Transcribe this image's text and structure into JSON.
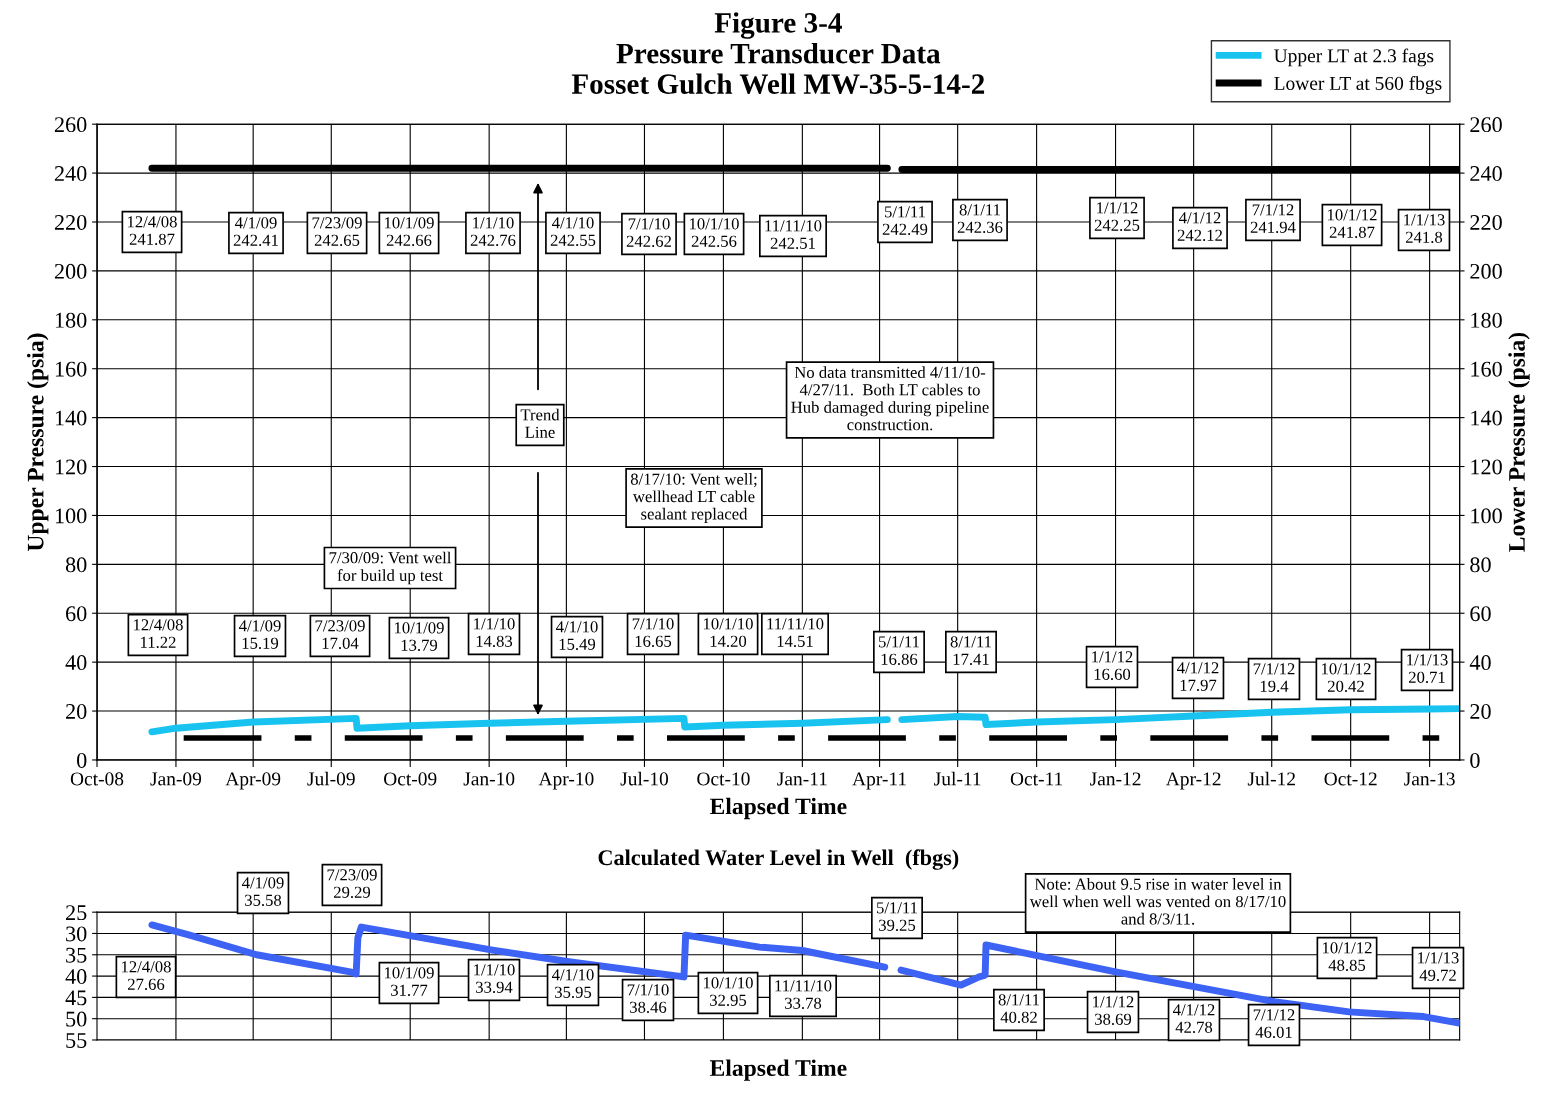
{
  "chart_data": [
    {
      "type": "line",
      "title": "Figure 3-4\nPressure Transducer Data\nFosset Gulch Well MW-35-5-14-2",
      "xlabel": "Elapsed Time",
      "ylabel": "Upper Pressure (psia)",
      "y2label": "Lower Pressure (psia)",
      "xlim": [
        "2008-10-01",
        "2013-02-05"
      ],
      "xticks": [
        {
          "value": "2008-10-01",
          "label": "Oct-08"
        },
        {
          "value": "2009-01-01",
          "label": "Jan-09"
        },
        {
          "value": "2009-04-01",
          "label": "Apr-09"
        },
        {
          "value": "2009-07-01",
          "label": "Jul-09"
        },
        {
          "value": "2009-10-01",
          "label": "Oct-09"
        },
        {
          "value": "2010-01-01",
          "label": "Jan-10"
        },
        {
          "value": "2010-04-01",
          "label": "Apr-10"
        },
        {
          "value": "2010-07-01",
          "label": "Jul-10"
        },
        {
          "value": "2010-10-01",
          "label": "Oct-10"
        },
        {
          "value": "2011-01-01",
          "label": "Jan-11"
        },
        {
          "value": "2011-04-01",
          "label": "Apr-11"
        },
        {
          "value": "2011-07-01",
          "label": "Jul-11"
        },
        {
          "value": "2011-10-01",
          "label": "Oct-11"
        },
        {
          "value": "2012-01-01",
          "label": "Jan-12"
        },
        {
          "value": "2012-04-01",
          "label": "Apr-12"
        },
        {
          "value": "2012-07-01",
          "label": "Jul-12"
        },
        {
          "value": "2012-10-01",
          "label": "Oct-12"
        },
        {
          "value": "2013-01-01",
          "label": "Jan-13"
        }
      ],
      "ylim": [
        0,
        260
      ],
      "yticks": [
        0,
        20,
        40,
        60,
        80,
        100,
        120,
        140,
        160,
        180,
        200,
        220,
        240,
        260
      ],
      "y2lim": [
        0,
        260
      ],
      "y2ticks": [
        0,
        20,
        40,
        60,
        80,
        100,
        120,
        140,
        160,
        180,
        200,
        220,
        240,
        260
      ],
      "grid": true,
      "legend": "top right",
      "series": [
        {
          "name": "Upper LT at 2.3 fags",
          "color": "#19c3f0",
          "x": [
            "2008-12-04",
            "2009-01-01",
            "2009-04-01",
            "2009-07-30",
            "2009-07-31",
            "2009-10-01",
            "2010-01-01",
            "2010-04-01",
            "2010-08-16",
            "2010-08-17",
            "2010-10-01",
            "2011-01-01",
            "2011-04-10",
            "2011-04-20",
            "2011-04-27",
            "2011-07-01",
            "2011-08-02",
            "2011-08-03",
            "2011-10-01",
            "2012-01-01",
            "2012-04-01",
            "2012-07-01",
            "2012-10-01",
            "2013-01-01",
            "2013-02-04"
          ],
          "values": [
            11.5,
            13,
            15.5,
            17,
            13,
            14,
            15,
            15.8,
            17,
            13.5,
            14.2,
            15,
            16.5,
            null,
            16.5,
            17.8,
            17.5,
            14.5,
            15.5,
            16.5,
            18,
            19.5,
            20.5,
            20.8,
            21
          ]
        },
        {
          "name": "Lower LT at 560 fbgs",
          "color": "#000000",
          "x": [
            "2008-12-04",
            "2010-01-01",
            "2011-04-10",
            "2011-04-20",
            "2011-04-27",
            "2012-06-01",
            "2013-02-04"
          ],
          "values": [
            242,
            242,
            242,
            null,
            241.5,
            241.5,
            241.5
          ]
        },
        {
          "color": "#000000",
          "line_style": "dashed",
          "x": [
            "2009-01-10",
            "2013-02-05"
          ],
          "values": [
            9,
            9
          ]
        }
      ],
      "annotations": [
        "12/4/08\n241.87",
        "4/1/09\n242.41",
        "7/23/09\n242.65",
        "10/1/09\n242.66",
        "1/1/10\n242.76",
        "4/1/10\n242.55",
        "7/1/10\n242.62",
        "10/1/10\n242.56",
        "11/11/10\n242.51",
        "5/1/11\n242.49",
        "8/1/11\n242.36",
        "1/1/12\n242.25",
        "4/1/12\n242.12",
        "7/1/12\n241.94",
        "10/1/12\n241.87",
        "1/1/13\n241.8",
        "12/4/08\n11.22",
        "4/1/09\n15.19",
        "7/23/09\n17.04",
        "10/1/09\n13.79",
        "1/1/10\n14.83",
        "4/1/10\n15.49",
        "7/1/10\n16.65",
        "10/1/10\n14.20",
        "11/11/10\n14.51",
        "5/1/11\n16.86",
        "8/1/11\n17.41",
        "1/1/12\n16.60",
        "4/1/12\n17.97",
        "7/1/12\n19.4",
        "10/1/12\n20.42",
        "1/1/13\n20.71",
        "7/30/09: Vent well\nfor build up test",
        "8/17/10: Vent well;\nwellhead LT cable\nsealant replaced",
        "No data transmitted 4/11/10-\n4/27/11.  Both LT cables to\nHub damaged during pipeline\nconstruction.",
        "Trend\nLine"
      ]
    },
    {
      "type": "line",
      "title": "Calculated Water Level in Well  (fbgs)",
      "xlabel": "Elapsed Time",
      "tick_labels": "y",
      "xlim": [
        "2008-10-01",
        "2013-02-05"
      ],
      "xticks": [
        {
          "value": "2009-01-01",
          "label": null
        },
        {
          "value": "2009-04-01",
          "label": null
        },
        {
          "value": "2009-07-01",
          "label": null
        },
        {
          "value": "2009-10-01",
          "label": null
        },
        {
          "value": "2010-01-01",
          "label": null
        },
        {
          "value": "2010-04-01",
          "label": null
        },
        {
          "value": "2010-07-01",
          "label": null
        },
        {
          "value": "2010-10-01",
          "label": null
        },
        {
          "value": "2011-01-01",
          "label": null
        },
        {
          "value": "2011-04-01",
          "label": null
        },
        {
          "value": "2011-07-01",
          "label": null
        },
        {
          "value": "2011-10-01",
          "label": null
        },
        {
          "value": "2012-01-01",
          "label": null
        },
        {
          "value": "2012-04-01",
          "label": null
        },
        {
          "value": "2012-07-01",
          "label": null
        },
        {
          "value": "2012-10-01",
          "label": null
        },
        {
          "value": "2013-01-01",
          "label": null
        }
      ],
      "ylim": [
        55,
        25
      ],
      "yticks": [
        25,
        30,
        35,
        40,
        45,
        50,
        55
      ],
      "grid": true,
      "series": [
        {
          "color": "#3d63f5",
          "x": [
            "2008-12-04",
            "2009-01-17",
            "2009-04-05",
            "2009-07-23",
            "2009-07-30",
            "2009-08-01",
            "2009-08-05",
            "2010-01-05",
            "2010-04-06",
            "2010-08-16",
            "2010-08-18",
            "2010-11-12",
            "2011-01-01",
            "2011-04-07",
            "2011-04-18",
            "2011-04-26",
            "2011-07-05",
            "2011-07-26",
            "2011-08-02",
            "2011-08-03",
            "2012-01-01",
            "2012-07-04",
            "2012-09-29",
            "2012-12-25",
            "2013-02-03"
          ],
          "values": [
            28,
            30.4,
            35,
            39,
            39.5,
            31,
            28.5,
            33.9,
            36.7,
            40.2,
            30.4,
            33.2,
            34,
            37.9,
            null,
            38.6,
            42.1,
            40.2,
            39.8,
            32.7,
            39,
            46,
            48.4,
            49.5,
            51
          ]
        }
      ],
      "annotations": [
        "12/4/08\n27.66",
        "4/1/09\n35.58",
        "7/23/09\n29.29",
        "10/1/09\n31.77",
        "1/1/10\n33.94",
        "4/1/10\n35.95",
        "7/1/10\n38.46",
        "10/1/10\n32.95",
        "11/11/10\n33.78",
        "5/1/11\n39.25",
        "8/1/11\n40.82",
        "1/1/12\n38.69",
        "4/1/12\n42.78",
        "7/1/12\n46.01",
        "10/1/12\n48.85",
        "1/1/13\n49.72",
        "Note: About 9.5 rise in water level in\nwell when well was vented on 8/17/10\nand 8/3/11."
      ]
    }
  ]
}
